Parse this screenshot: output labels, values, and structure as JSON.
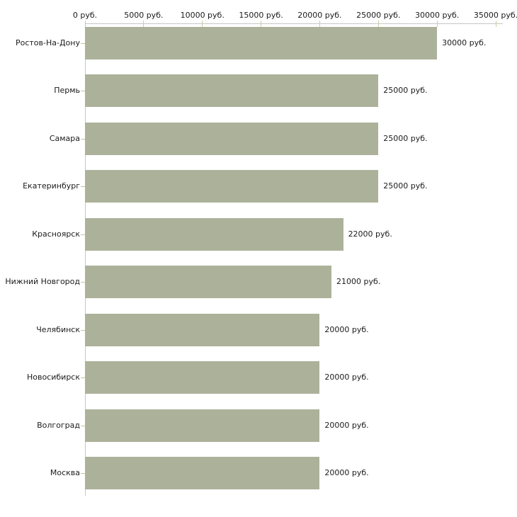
{
  "chart_data": {
    "type": "bar",
    "orientation": "horizontal",
    "title": "",
    "xlabel": "",
    "ylabel": "",
    "unit": "руб.",
    "categories": [
      "Ростов-На-Дону",
      "Пермь",
      "Самара",
      "Екатеринбург",
      "Красноярск",
      "Нижний Новгород",
      "Челябинск",
      "Новосибирск",
      "Волгоград",
      "Москва"
    ],
    "values": [
      30000,
      25000,
      25000,
      25000,
      22000,
      21000,
      20000,
      20000,
      20000,
      20000
    ],
    "value_labels": [
      "30000 руб.",
      "25000 руб.",
      "25000 руб.",
      "25000 руб.",
      "22000 руб.",
      "21000 руб.",
      "20000 руб.",
      "20000 руб.",
      "20000 руб.",
      "20000 руб."
    ],
    "x_axis": {
      "position": "top",
      "range": [
        0,
        35000
      ],
      "ticks": [
        0,
        5000,
        10000,
        15000,
        20000,
        25000,
        30000,
        35000
      ],
      "tick_labels": [
        "0 руб.",
        "5000 руб.",
        "10000 руб.",
        "15000 руб.",
        "20000 руб.",
        "25000 руб.",
        "30000 руб.",
        "35000 руб."
      ]
    },
    "grid": false,
    "legend": false,
    "colors": {
      "bar": "#acb29a",
      "axis_line": "#c6c6c6",
      "x_tick_mark": "#cdcda3",
      "category_tick": "#c2c2a0",
      "text": "#1b1b1b",
      "background": "#ffffff"
    }
  }
}
